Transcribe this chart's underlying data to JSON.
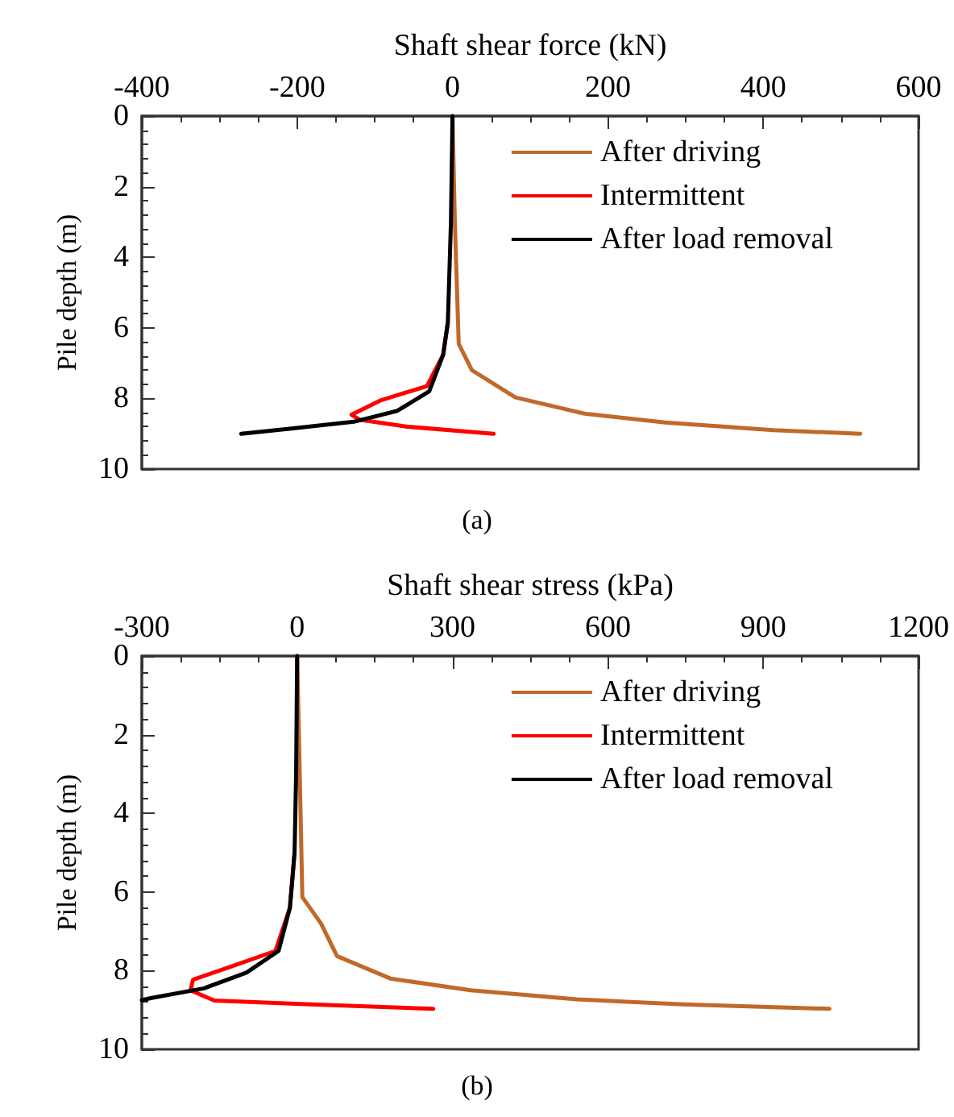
{
  "chart_data": [
    {
      "type": "line",
      "xlabel": "Shaft shear force (kN)",
      "ylabel": "Pile depth (m)",
      "annotations": [
        "(a)"
      ],
      "xlim": [
        -400,
        600
      ],
      "xticks": [
        -400,
        -200,
        0,
        200,
        400,
        600
      ],
      "ylim": [
        10,
        0
      ],
      "yticks": [
        0,
        2,
        4,
        6,
        8,
        10
      ],
      "grid": false,
      "legend": "top right",
      "marker": "none",
      "line_style": "solid",
      "series": [
        {
          "name": "After driving",
          "color": "#c0692a",
          "x": [
            0,
            3,
            8,
            25,
            81,
            170,
            274,
            413,
            525
          ],
          "values": [
            0,
            3,
            6.45,
            7.2,
            7.97,
            8.43,
            8.68,
            8.9,
            9.0
          ]
        },
        {
          "name": "Intermittent",
          "color": "#ff0000",
          "x": [
            -6,
            -12,
            -33,
            -92,
            -130,
            -120,
            -58,
            53
          ],
          "values": [
            5.85,
            6.76,
            7.65,
            8.05,
            8.46,
            8.6,
            8.8,
            9.0
          ]
        },
        {
          "name": "After load removal",
          "color": "#000000",
          "x": [
            0,
            -2,
            -6,
            -12,
            -30,
            -71,
            -127,
            -210,
            -272
          ],
          "values": [
            0,
            3,
            5.85,
            6.76,
            7.8,
            8.35,
            8.66,
            8.86,
            9.0
          ]
        }
      ]
    },
    {
      "type": "line",
      "xlabel": "Shaft shear stress (kPa)",
      "ylabel": "Pile depth (m)",
      "annotations": [
        "(b)"
      ],
      "xlim": [
        -300,
        1200
      ],
      "xticks": [
        -300,
        0,
        300,
        600,
        900,
        1200
      ],
      "ylim": [
        10,
        0
      ],
      "yticks": [
        0,
        2,
        4,
        6,
        8,
        10
      ],
      "grid": false,
      "legend": "top right",
      "marker": "none",
      "line_style": "solid",
      "series": [
        {
          "name": "After driving",
          "color": "#c0692a",
          "x": [
            0,
            5,
            10,
            46,
            77,
            180,
            335,
            540,
            745,
            1028
          ],
          "values": [
            0,
            3,
            6.13,
            6.8,
            7.63,
            8.2,
            8.5,
            8.73,
            8.86,
            8.97
          ]
        },
        {
          "name": "Intermittent",
          "color": "#ff0000",
          "x": [
            -5,
            -14,
            -42,
            -129,
            -201,
            -206,
            -160,
            26,
            263
          ],
          "values": [
            5.0,
            6.4,
            7.5,
            7.9,
            8.23,
            8.5,
            8.76,
            8.86,
            8.97
          ]
        },
        {
          "name": "After load removal",
          "color": "#000000",
          "x": [
            0,
            -2,
            -5,
            -14,
            -36,
            -98,
            -180,
            -283,
            -300
          ],
          "values": [
            0,
            3,
            5.0,
            6.4,
            7.5,
            8.05,
            8.45,
            8.7,
            8.75
          ]
        }
      ]
    }
  ]
}
